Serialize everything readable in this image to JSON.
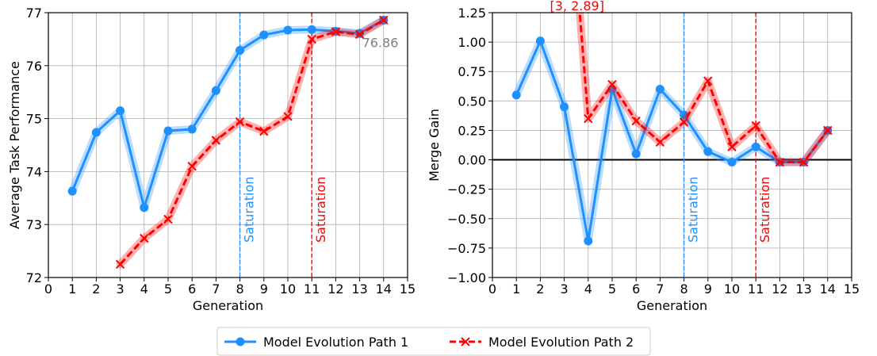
{
  "chart_data": [
    {
      "type": "line",
      "xlabel": "Generation",
      "ylabel": "Average Task Performance",
      "xlim": [
        0,
        15
      ],
      "ylim": [
        72,
        77
      ],
      "xticks": [
        0,
        1,
        2,
        3,
        4,
        5,
        6,
        7,
        8,
        9,
        10,
        11,
        12,
        13,
        14,
        15
      ],
      "yticks": [
        72,
        73,
        74,
        75,
        76,
        77
      ],
      "grid": true,
      "series": [
        {
          "name": "Model Evolution Path 1",
          "color": "#1e90ff",
          "marker": "circle",
          "x": [
            1,
            2,
            3,
            4,
            5,
            6,
            7,
            8,
            9,
            10,
            11,
            12,
            13,
            14
          ],
          "y": [
            73.63,
            74.74,
            75.15,
            73.32,
            74.77,
            74.8,
            75.53,
            76.29,
            76.58,
            76.67,
            76.68,
            76.65,
            76.61,
            76.86
          ]
        },
        {
          "name": "Model Evolution Path 2",
          "color": "#ff0000",
          "marker": "x",
          "x": [
            3,
            4,
            5,
            6,
            7,
            8,
            9,
            10,
            11,
            12,
            13,
            14
          ],
          "y": [
            72.25,
            72.74,
            73.1,
            74.1,
            74.59,
            74.94,
            74.76,
            75.04,
            76.5,
            76.64,
            76.59,
            76.86
          ]
        }
      ],
      "vlines": [
        {
          "x": 8,
          "label": "Saturation",
          "color": "#1e90ff"
        },
        {
          "x": 11,
          "label": "Saturation",
          "color": "#ff0000"
        }
      ],
      "annotations": [
        {
          "text": "76.86",
          "x": 13.1,
          "y": 76.35,
          "color": "#808080"
        }
      ]
    },
    {
      "type": "line",
      "xlabel": "Generation",
      "ylabel": "Merge Gain",
      "xlim": [
        0,
        15
      ],
      "ylim": [
        -1.0,
        1.25
      ],
      "xticks": [
        0,
        1,
        2,
        3,
        4,
        5,
        6,
        7,
        8,
        9,
        10,
        11,
        12,
        13,
        14,
        15
      ],
      "yticks": [
        "−1.00",
        "−0.75",
        "−0.50",
        "−0.25",
        "0.00",
        "0.25",
        "0.50",
        "0.75",
        "1.00",
        "1.25"
      ],
      "grid": true,
      "hline": {
        "y": 0,
        "color": "#000000"
      },
      "series": [
        {
          "name": "Model Evolution Path 1",
          "color": "#1e90ff",
          "marker": "circle",
          "x": [
            1,
            2,
            3,
            4,
            5,
            6,
            7,
            8,
            9,
            10,
            11,
            12,
            13,
            14
          ],
          "y": [
            0.55,
            1.01,
            0.45,
            -0.69,
            0.6,
            0.05,
            0.6,
            0.38,
            0.07,
            -0.02,
            0.11,
            -0.02,
            -0.02,
            0.25
          ]
        },
        {
          "name": "Model Evolution Path 2",
          "color": "#ff0000",
          "marker": "x",
          "x": [
            3,
            4,
            5,
            6,
            7,
            8,
            9,
            10,
            11,
            12,
            13,
            14
          ],
          "y": [
            2.89,
            0.35,
            0.64,
            0.33,
            0.15,
            0.32,
            0.67,
            0.11,
            0.29,
            -0.02,
            -0.02,
            0.25
          ]
        }
      ],
      "vlines": [
        {
          "x": 8,
          "label": "Saturation",
          "color": "#1e90ff"
        },
        {
          "x": 11,
          "label": "Saturation",
          "color": "#ff0000"
        }
      ],
      "annotations": [
        {
          "text": "[3, 2.89]",
          "x": 2.4,
          "y": 1.27,
          "color": "#ff0000"
        }
      ]
    }
  ],
  "legend": {
    "placement": "bottom-center",
    "items": [
      {
        "label": "Model Evolution Path 1",
        "color": "#1e90ff",
        "marker": "circle",
        "linestyle": "solid"
      },
      {
        "label": "Model Evolution Path 2",
        "color": "#ff0000",
        "marker": "x",
        "linestyle": "dashed"
      }
    ]
  }
}
